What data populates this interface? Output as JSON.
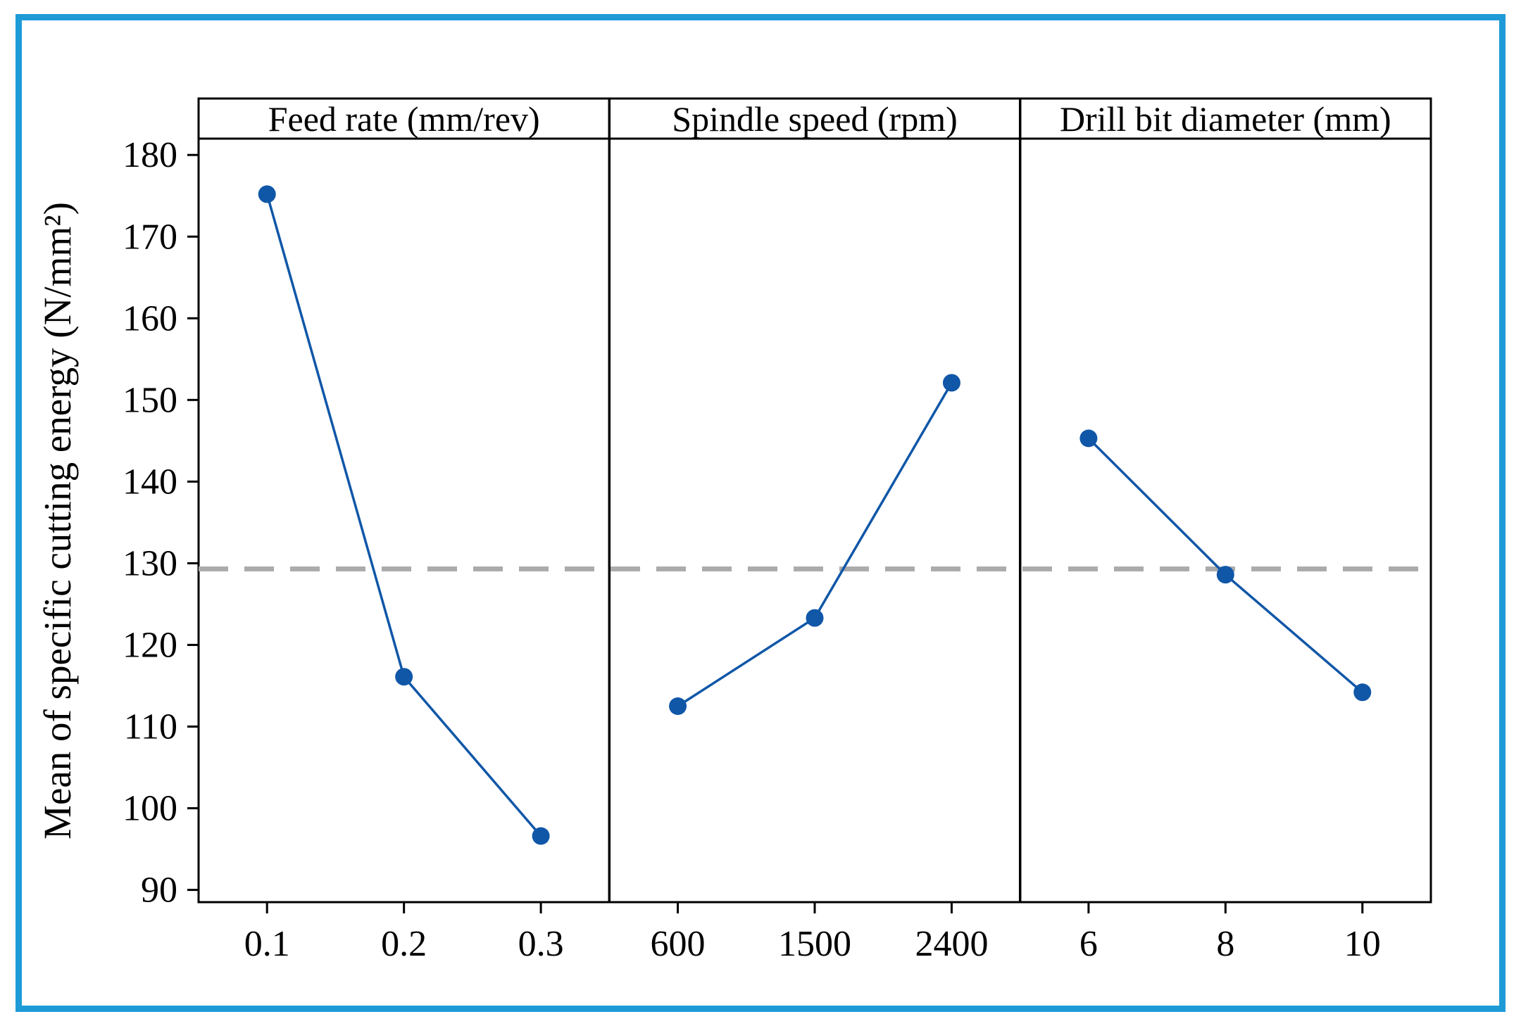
{
  "chart_data": {
    "type": "line",
    "subtype": "main-effects-plot",
    "title": "",
    "ylabel": "Mean of specific cutting energy (N/mm²)",
    "ylim": [
      88.5,
      182
    ],
    "yticks": [
      90,
      100,
      110,
      120,
      130,
      140,
      150,
      160,
      170,
      180
    ],
    "grid": false,
    "legend": "none",
    "reference_line": {
      "value": 129.3,
      "style": "dashed"
    },
    "panels": [
      {
        "header": "Feed rate (mm/rev)",
        "categories": [
          "0.1",
          "0.2",
          "0.3"
        ],
        "values": [
          175.2,
          116.1,
          96.6
        ]
      },
      {
        "header": "Spindle speed (rpm)",
        "categories": [
          "600",
          "1500",
          "2400"
        ],
        "values": [
          112.5,
          123.3,
          152.1
        ]
      },
      {
        "header": "Drill bit diameter (mm)",
        "categories": [
          "6",
          "8",
          "10"
        ],
        "values": [
          145.3,
          128.6,
          114.2
        ]
      }
    ],
    "colors": {
      "series": "#1057A8",
      "reference": "#ABABAB",
      "frame": "#1E9BD7",
      "axis": "#000000"
    }
  }
}
